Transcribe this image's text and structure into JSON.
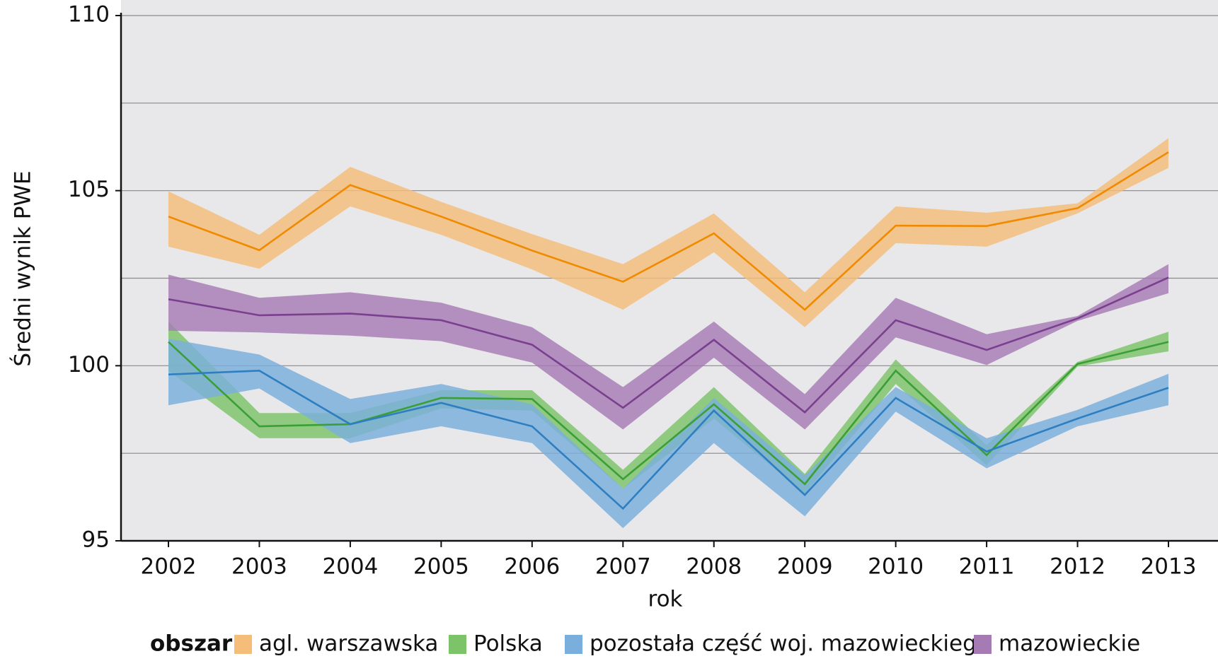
{
  "chart_data": {
    "type": "line-band",
    "x_label": "rok",
    "y_label": "Średni wynik PWE",
    "legend_title": "obszar:",
    "categories": [
      "2002",
      "2003",
      "2004",
      "2005",
      "2006",
      "2007",
      "2008",
      "2009",
      "2010",
      "2011",
      "2012",
      "2013"
    ],
    "ylim": [
      95,
      110
    ],
    "yticks": [
      95,
      100,
      105,
      110
    ],
    "minor_yticks": [
      97.5,
      102.5,
      107.5
    ],
    "grid": true,
    "series": [
      {
        "name": "agl. warszawska",
        "color": "#f08a00",
        "band_color": "#f5bd7a",
        "values": [
          104.26,
          103.3,
          105.16,
          104.26,
          103.29,
          102.4,
          103.78,
          101.6,
          104.0,
          103.99,
          104.5,
          106.1
        ],
        "upper": [
          104.98,
          103.74,
          105.68,
          104.68,
          103.76,
          102.9,
          104.35,
          102.1,
          104.55,
          104.37,
          104.64,
          106.5
        ],
        "lower": [
          103.4,
          102.77,
          104.55,
          103.74,
          102.75,
          101.6,
          103.24,
          101.1,
          103.5,
          103.4,
          104.35,
          105.65
        ]
      },
      {
        "name": "Polska",
        "color": "#3a9f36",
        "band_color": "#7cc36a",
        "values": [
          100.68,
          98.27,
          98.33,
          99.08,
          99.05,
          96.76,
          98.9,
          96.62,
          99.86,
          97.45,
          100.05,
          100.68
        ],
        "upper": [
          101.26,
          98.65,
          98.65,
          99.3,
          99.3,
          97.03,
          99.39,
          96.91,
          100.18,
          97.73,
          100.11,
          100.97
        ],
        "lower": [
          99.86,
          97.93,
          97.93,
          98.78,
          98.72,
          96.49,
          98.49,
          96.35,
          99.48,
          97.16,
          99.98,
          100.41
        ]
      },
      {
        "name": "pozostała część woj. mazowieckiego",
        "color": "#2d7fc1",
        "band_color": "#7aaedd",
        "values": [
          99.75,
          99.86,
          98.33,
          98.94,
          98.27,
          95.92,
          98.72,
          96.31,
          99.08,
          97.55,
          98.49,
          99.37
        ],
        "upper": [
          100.77,
          100.32,
          99.05,
          99.48,
          98.9,
          96.49,
          99.08,
          96.87,
          99.39,
          97.93,
          98.74,
          99.77
        ],
        "lower": [
          98.87,
          99.35,
          97.79,
          98.27,
          97.79,
          95.36,
          97.79,
          95.7,
          98.69,
          97.07,
          98.27,
          98.87
        ]
      },
      {
        "name": "mazowieckie",
        "color": "#7a3f8e",
        "band_color": "#a67bb4",
        "values": [
          101.9,
          101.44,
          101.49,
          101.3,
          100.6,
          98.8,
          100.74,
          98.67,
          101.3,
          100.45,
          101.35,
          102.52
        ],
        "upper": [
          102.6,
          101.94,
          102.1,
          101.8,
          101.1,
          99.39,
          101.26,
          99.19,
          101.94,
          100.9,
          101.42,
          102.9
        ],
        "lower": [
          101.0,
          100.95,
          100.86,
          100.7,
          100.09,
          98.18,
          100.23,
          98.18,
          100.81,
          100.02,
          101.28,
          102.07
        ]
      }
    ]
  }
}
